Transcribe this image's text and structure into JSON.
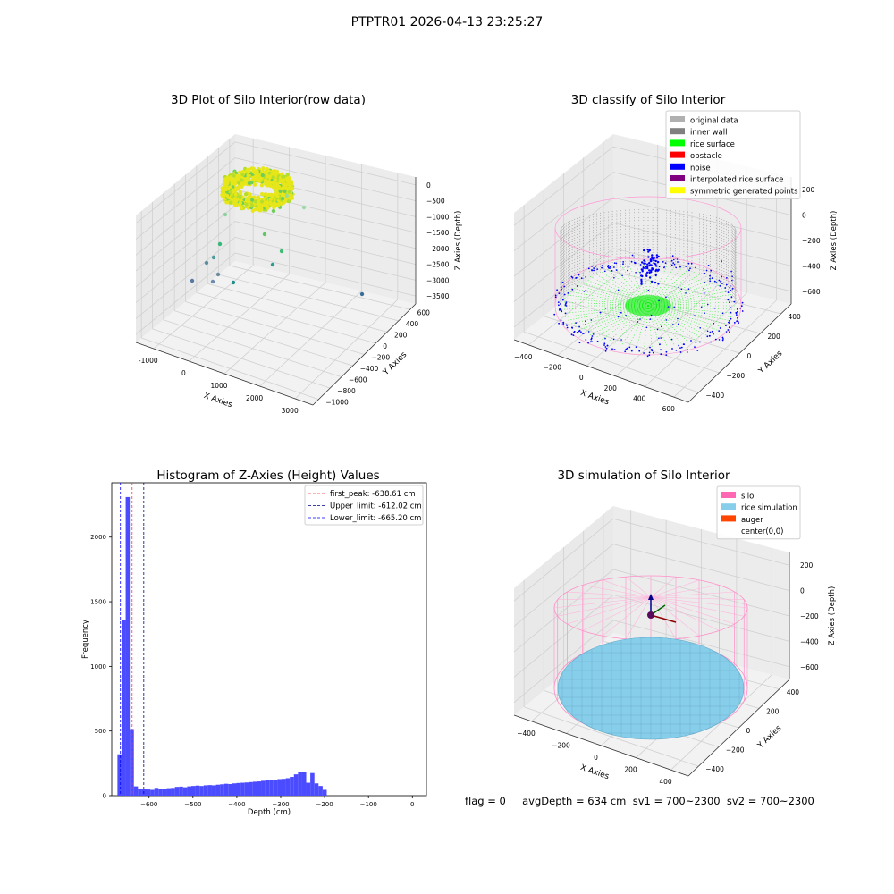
{
  "suptitle": "PTPTR01 2026-04-13 23:25:27",
  "footer": "flag = 0     avgDepth = 634 cm  sv1 = 700~2300  sv2 = 700~2300",
  "chart_data": [
    {
      "type": "scatter",
      "title": "3D Plot of Silo Interior(row data)",
      "xlabel": "X Axies",
      "ylabel": "Y Axies",
      "zlabel": "Z Axies (Depth)",
      "x_ticks": [
        "-1000",
        "0",
        "1000",
        "2000",
        "3000"
      ],
      "y_ticks": [
        "600",
        "400",
        "200",
        "0",
        "−200",
        "−400",
        "−600",
        "−800",
        "−1000"
      ],
      "z_ticks": [
        "0",
        "−500",
        "−1000",
        "−1500",
        "−2000",
        "−2500",
        "−3000",
        "−3500"
      ],
      "xlim": [
        -1500,
        3500
      ],
      "ylim": [
        -1000,
        600
      ],
      "zlim": [
        -3700,
        0
      ],
      "colormap": "viridis",
      "grid": true
    },
    {
      "type": "scatter",
      "title": "3D classify of Silo Interior",
      "xlabel": "X Axies",
      "ylabel": "Y Axies",
      "zlabel": "Z Axies (Depth)",
      "x_ticks": [
        "−400",
        "−200",
        "0",
        "200",
        "400",
        "600"
      ],
      "y_ticks": [
        "400",
        "200",
        "0",
        "−200",
        "−400"
      ],
      "z_ticks": [
        "200",
        "0",
        "−200",
        "−400",
        "−600"
      ],
      "legend_position": "top-right",
      "legend": [
        {
          "label": "original data",
          "color": "#b0b0b0"
        },
        {
          "label": "inner wall",
          "color": "#808080"
        },
        {
          "label": "rice surface",
          "color": "#00ff00"
        },
        {
          "label": "obstacle",
          "color": "#ff0000"
        },
        {
          "label": "noise",
          "color": "#0000ff"
        },
        {
          "label": "interpolated rice surface",
          "color": "#800080"
        },
        {
          "label": "symmetric generated points",
          "color": "#ffff00"
        }
      ],
      "grid": true
    },
    {
      "type": "bar",
      "title": "Histogram of Z-Axies (Height) Values",
      "xlabel": "Depth (cm)",
      "ylabel": "Frequency",
      "xlim": [
        -685,
        32
      ],
      "ylim": [
        0,
        2420
      ],
      "x_ticks": [
        -600,
        -500,
        -400,
        -300,
        -200,
        -100,
        0
      ],
      "y_ticks": [
        0,
        500,
        1000,
        1500,
        2000
      ],
      "bar_color": "#4b4bff",
      "bin_start": -672,
      "bin_width": 9.35,
      "values": [
        320,
        1360,
        2310,
        515,
        72,
        55,
        52,
        48,
        45,
        60,
        55,
        55,
        58,
        60,
        68,
        70,
        65,
        72,
        75,
        78,
        75,
        80,
        82,
        80,
        85,
        88,
        92,
        90,
        95,
        98,
        100,
        102,
        105,
        108,
        110,
        115,
        118,
        120,
        122,
        128,
        130,
        135,
        145,
        165,
        185,
        180,
        100,
        175,
        95,
        75,
        45
      ],
      "vlines": [
        {
          "label": "first_peak: -638.61 cm",
          "value": -638.61,
          "color": "#ff3333"
        },
        {
          "label": "Upper_limit: -612.02 cm",
          "value": -612.02,
          "color": "#000088"
        },
        {
          "label": "Lower_limit: -665.20 cm",
          "value": -665.2,
          "color": "#0000ff"
        }
      ],
      "legend_position": "top-right",
      "grid": false
    },
    {
      "type": "scatter",
      "title": "3D simulation of Silo Interior",
      "xlabel": "X Axies",
      "ylabel": "Y Axies",
      "zlabel": "Z Axies (Depth)",
      "x_ticks": [
        "−400",
        "−200",
        "0",
        "200",
        "400"
      ],
      "y_ticks": [
        "400",
        "200",
        "0",
        "−200",
        "−400"
      ],
      "z_ticks": [
        "200",
        "0",
        "−200",
        "−400",
        "−600"
      ],
      "legend_position": "top-right",
      "legend": [
        {
          "label": "silo",
          "color": "#ff69b4"
        },
        {
          "label": "rice simulation",
          "color": "#87ceeb"
        },
        {
          "label": "auger",
          "color": "#ff4500"
        },
        {
          "label": "center(0,0)",
          "color": ""
        }
      ],
      "grid": true
    }
  ]
}
